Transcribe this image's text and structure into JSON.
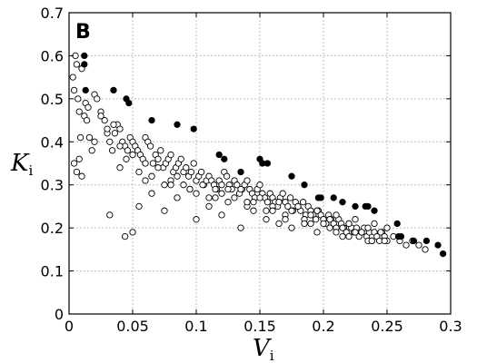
{
  "chart_data": {
    "type": "scatter",
    "panel_label": "B",
    "xlabel": "V",
    "xlabel_sub": "i",
    "ylabel": "K",
    "ylabel_sub": "i",
    "xlim": [
      0,
      0.3
    ],
    "ylim": [
      0,
      0.7
    ],
    "xticks": [
      "0",
      "0.05",
      "0.1",
      "0.15",
      "0.2",
      "0.25",
      "0.3"
    ],
    "yticks": [
      "0",
      "0.1",
      "0.2",
      "0.3",
      "0.4",
      "0.5",
      "0.6",
      "0.7"
    ],
    "grid": true,
    "series": [
      {
        "marker": "open-circle",
        "color": "#000000",
        "x": [
          0.003,
          0.004,
          0.005,
          0.006,
          0.007,
          0.008,
          0.009,
          0.01,
          0.004,
          0.006,
          0.008,
          0.012,
          0.014,
          0.016,
          0.018,
          0.02,
          0.01,
          0.013,
          0.015,
          0.02,
          0.022,
          0.025,
          0.028,
          0.03,
          0.032,
          0.034,
          0.036,
          0.038,
          0.04,
          0.042,
          0.044,
          0.046,
          0.048,
          0.05,
          0.052,
          0.054,
          0.056,
          0.058,
          0.06,
          0.062,
          0.064,
          0.066,
          0.068,
          0.07,
          0.072,
          0.074,
          0.076,
          0.078,
          0.08,
          0.082,
          0.084,
          0.086,
          0.088,
          0.09,
          0.092,
          0.094,
          0.096,
          0.098,
          0.1,
          0.102,
          0.104,
          0.106,
          0.108,
          0.11,
          0.112,
          0.114,
          0.116,
          0.118,
          0.12,
          0.122,
          0.124,
          0.126,
          0.128,
          0.13,
          0.132,
          0.134,
          0.136,
          0.138,
          0.14,
          0.142,
          0.144,
          0.146,
          0.148,
          0.15,
          0.152,
          0.154,
          0.156,
          0.158,
          0.16,
          0.162,
          0.164,
          0.166,
          0.168,
          0.17,
          0.172,
          0.174,
          0.176,
          0.178,
          0.18,
          0.182,
          0.184,
          0.186,
          0.188,
          0.19,
          0.192,
          0.194,
          0.196,
          0.198,
          0.2,
          0.202,
          0.204,
          0.206,
          0.208,
          0.21,
          0.212,
          0.214,
          0.216,
          0.218,
          0.22,
          0.222,
          0.224,
          0.226,
          0.228,
          0.23,
          0.232,
          0.234,
          0.236,
          0.238,
          0.24,
          0.242,
          0.244,
          0.246,
          0.248,
          0.25,
          0.255,
          0.26,
          0.265,
          0.27,
          0.275,
          0.28,
          0.025,
          0.03,
          0.035,
          0.04,
          0.045,
          0.05,
          0.055,
          0.06,
          0.065,
          0.07,
          0.075,
          0.08,
          0.085,
          0.09,
          0.095,
          0.1,
          0.105,
          0.11,
          0.115,
          0.12,
          0.125,
          0.13,
          0.135,
          0.14,
          0.145,
          0.15,
          0.155,
          0.16,
          0.165,
          0.17,
          0.175,
          0.18,
          0.185,
          0.19,
          0.195,
          0.2,
          0.205,
          0.21,
          0.215,
          0.22,
          0.225,
          0.23,
          0.235,
          0.24,
          0.245,
          0.25,
          0.032,
          0.044,
          0.05,
          0.055,
          0.065,
          0.075,
          0.085,
          0.1,
          0.11,
          0.12,
          0.135,
          0.145,
          0.155,
          0.165,
          0.175,
          0.185,
          0.195,
          0.205,
          0.215,
          0.225,
          0.235,
          0.04,
          0.06,
          0.08,
          0.095,
          0.115,
          0.125,
          0.14,
          0.16,
          0.17,
          0.19,
          0.21,
          0.22,
          0.238,
          0.248
        ],
        "y": [
          0.55,
          0.52,
          0.6,
          0.58,
          0.5,
          0.47,
          0.41,
          0.32,
          0.35,
          0.33,
          0.36,
          0.46,
          0.45,
          0.41,
          0.38,
          0.4,
          0.57,
          0.49,
          0.48,
          0.51,
          0.5,
          0.47,
          0.45,
          0.42,
          0.4,
          0.38,
          0.42,
          0.44,
          0.43,
          0.4,
          0.39,
          0.38,
          0.41,
          0.4,
          0.39,
          0.38,
          0.37,
          0.36,
          0.41,
          0.4,
          0.39,
          0.35,
          0.37,
          0.36,
          0.38,
          0.34,
          0.35,
          0.36,
          0.37,
          0.33,
          0.34,
          0.35,
          0.36,
          0.33,
          0.34,
          0.32,
          0.33,
          0.35,
          0.31,
          0.32,
          0.33,
          0.3,
          0.31,
          0.32,
          0.31,
          0.3,
          0.29,
          0.31,
          0.3,
          0.33,
          0.32,
          0.3,
          0.29,
          0.31,
          0.3,
          0.28,
          0.29,
          0.3,
          0.31,
          0.29,
          0.28,
          0.27,
          0.29,
          0.3,
          0.28,
          0.27,
          0.26,
          0.28,
          0.27,
          0.26,
          0.25,
          0.27,
          0.28,
          0.26,
          0.25,
          0.27,
          0.24,
          0.26,
          0.25,
          0.24,
          0.26,
          0.23,
          0.25,
          0.24,
          0.23,
          0.22,
          0.24,
          0.23,
          0.22,
          0.21,
          0.23,
          0.22,
          0.21,
          0.2,
          0.22,
          0.21,
          0.2,
          0.19,
          0.21,
          0.2,
          0.19,
          0.2,
          0.18,
          0.19,
          0.2,
          0.18,
          0.19,
          0.17,
          0.19,
          0.18,
          0.17,
          0.19,
          0.18,
          0.17,
          0.18,
          0.17,
          0.16,
          0.17,
          0.16,
          0.15,
          0.46,
          0.43,
          0.44,
          0.39,
          0.36,
          0.37,
          0.33,
          0.35,
          0.32,
          0.34,
          0.3,
          0.31,
          0.32,
          0.3,
          0.29,
          0.28,
          0.3,
          0.27,
          0.29,
          0.28,
          0.26,
          0.27,
          0.29,
          0.25,
          0.26,
          0.27,
          0.24,
          0.25,
          0.26,
          0.23,
          0.24,
          0.25,
          0.22,
          0.23,
          0.24,
          0.21,
          0.22,
          0.23,
          0.2,
          0.21,
          0.22,
          0.19,
          0.2,
          0.21,
          0.19,
          0.2,
          0.23,
          0.18,
          0.19,
          0.25,
          0.28,
          0.24,
          0.27,
          0.22,
          0.25,
          0.23,
          0.2,
          0.24,
          0.22,
          0.21,
          0.2,
          0.21,
          0.19,
          0.2,
          0.18,
          0.19,
          0.17,
          0.34,
          0.31,
          0.3,
          0.29,
          0.27,
          0.29,
          0.26,
          0.24,
          0.22,
          0.21,
          0.19,
          0.18,
          0.17,
          0.17
        ]
      },
      {
        "marker": "filled-circle",
        "color": "#000000",
        "x": [
          0.012,
          0.012,
          0.013,
          0.035,
          0.045,
          0.047,
          0.065,
          0.085,
          0.098,
          0.118,
          0.122,
          0.135,
          0.15,
          0.152,
          0.156,
          0.175,
          0.185,
          0.196,
          0.198,
          0.208,
          0.215,
          0.225,
          0.233,
          0.235,
          0.24,
          0.258,
          0.259,
          0.261,
          0.271,
          0.281,
          0.29,
          0.294
        ],
        "y": [
          0.6,
          0.58,
          0.52,
          0.52,
          0.5,
          0.49,
          0.45,
          0.44,
          0.43,
          0.37,
          0.36,
          0.33,
          0.36,
          0.35,
          0.35,
          0.32,
          0.3,
          0.27,
          0.27,
          0.27,
          0.26,
          0.25,
          0.25,
          0.25,
          0.24,
          0.21,
          0.18,
          0.18,
          0.17,
          0.17,
          0.16,
          0.14
        ]
      }
    ]
  }
}
